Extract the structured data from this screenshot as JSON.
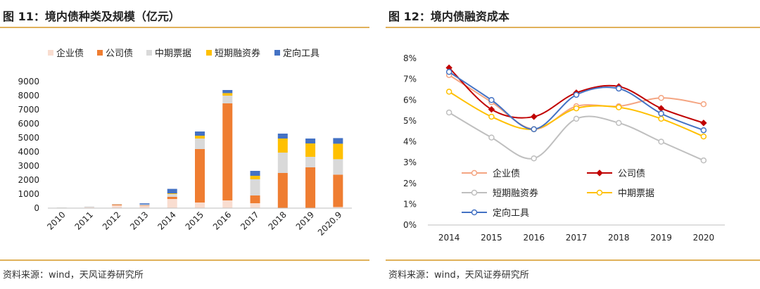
{
  "left": {
    "title": "图 11：境内债种类及规模（亿元）",
    "source": "资料来源：wind，天风证券研究所",
    "chart_data": {
      "type": "bar",
      "stacked": true,
      "categories": [
        "2010",
        "2011",
        "2012",
        "2013",
        "2014",
        "2015",
        "2016",
        "2017",
        "2018",
        "2019",
        "2020.9"
      ],
      "ylim": [
        0,
        9000
      ],
      "yticks": [
        "0",
        "1000",
        "2000",
        "3000",
        "4000",
        "5000",
        "6000",
        "7000",
        "8000",
        "9000"
      ],
      "legend_position": "top",
      "grid": false,
      "series": [
        {
          "name": "企业债",
          "color": "#f9ddd0",
          "values": [
            30,
            60,
            200,
            150,
            650,
            400,
            550,
            350,
            0,
            0,
            80
          ]
        },
        {
          "name": "公司债",
          "color": "#ef7d31",
          "values": [
            0,
            0,
            60,
            30,
            150,
            3800,
            6900,
            550,
            2500,
            2900,
            2300
          ]
        },
        {
          "name": "中期票据",
          "color": "#d9d9d9",
          "values": [
            20,
            60,
            40,
            80,
            200,
            750,
            550,
            1150,
            1450,
            750,
            1100
          ]
        },
        {
          "name": "短期融资券",
          "color": "#ffc000",
          "values": [
            0,
            0,
            0,
            0,
            50,
            200,
            180,
            250,
            1000,
            950,
            1100
          ]
        },
        {
          "name": "定向工具",
          "color": "#4472c4",
          "values": [
            0,
            0,
            0,
            80,
            320,
            300,
            220,
            350,
            350,
            350,
            400
          ]
        }
      ]
    }
  },
  "right": {
    "title": "图 12：境内债融资成本",
    "source": "资料来源：wind，天风证券研究所",
    "chart_data": {
      "type": "line",
      "smooth": true,
      "x": [
        "2014",
        "2015",
        "2016",
        "2017",
        "2018",
        "2019",
        "2020"
      ],
      "ylim": [
        0,
        8
      ],
      "yticks": [
        "0%",
        "1%",
        "2%",
        "3%",
        "4%",
        "5%",
        "6%",
        "7%",
        "8%"
      ],
      "legend_position": "bottom-left inside",
      "grid": false,
      "series": [
        {
          "name": "企业债",
          "color": "#f4a582",
          "marker": "circle-hollow",
          "values": [
            7.2,
            5.9,
            4.6,
            5.7,
            5.7,
            6.1,
            5.8
          ]
        },
        {
          "name": "公司债",
          "color": "#c00000",
          "marker": "diamond",
          "values": [
            7.55,
            5.55,
            5.2,
            6.35,
            6.65,
            5.6,
            4.9
          ]
        },
        {
          "name": "短期融资券",
          "color": "#bfbfbf",
          "marker": "circle-hollow",
          "values": [
            5.4,
            4.2,
            3.2,
            5.1,
            4.9,
            4.0,
            3.1
          ]
        },
        {
          "name": "中期票据",
          "color": "#ffc000",
          "marker": "circle-hollow",
          "values": [
            6.4,
            5.2,
            4.6,
            5.6,
            5.65,
            5.1,
            4.25
          ]
        },
        {
          "name": "定向工具",
          "color": "#4472c4",
          "marker": "circle-hollow",
          "values": [
            7.35,
            6.0,
            4.6,
            6.25,
            6.55,
            5.35,
            4.55
          ]
        }
      ]
    }
  }
}
